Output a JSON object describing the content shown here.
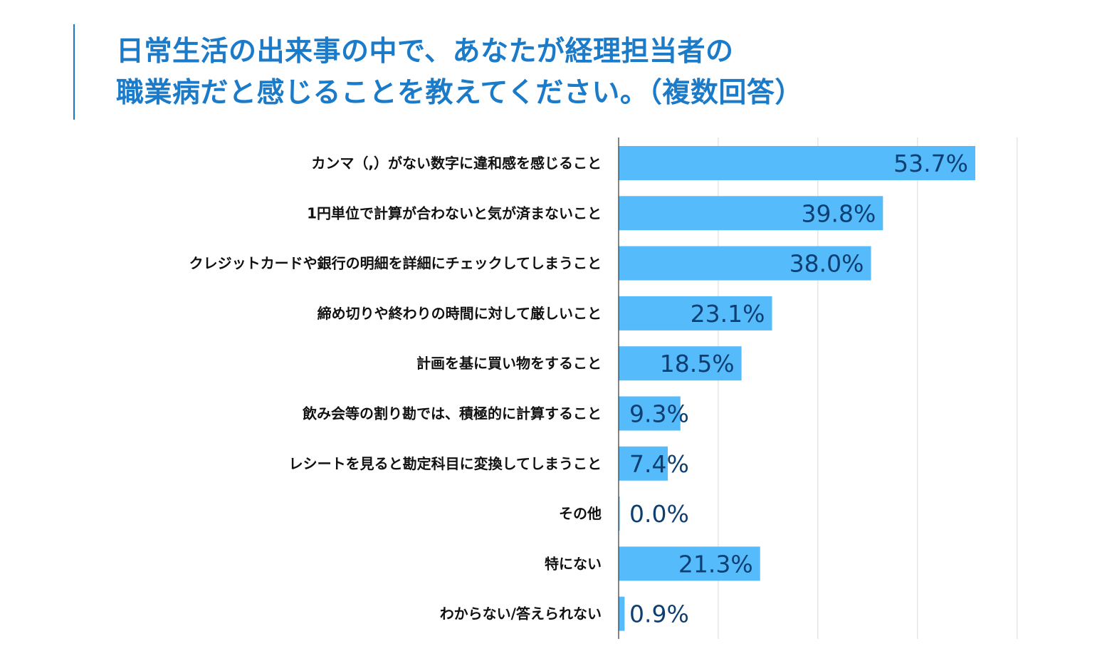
{
  "title_lines": [
    "日常生活の出来事の中で、あなたが経理担当者の",
    "職業病だと感じることを教えてください。（複数回答）"
  ],
  "colors": {
    "title": "#1b7bc9",
    "accent_line": "#1b7bc9",
    "bar": "#56bbfb",
    "value_label": "#0d3f73",
    "category_label": "#111111",
    "grid": "#d9d9d9",
    "axis": "#333333"
  },
  "chart_data": {
    "type": "bar",
    "orientation": "horizontal",
    "title": "日常生活の出来事の中で、あなたが経理担当者の職業病だと感じることを教えてください。（複数回答）",
    "categories": [
      "カンマ（,）がない数字に違和感を感じること",
      "1円単位で計算が合わないと気が済まないこと",
      "クレジットカードや銀行の明細を詳細にチェックしてしまうこと",
      "締め切りや終わりの時間に対して厳しいこと",
      "計画を基に買い物をすること",
      "飲み会等の割り勘では、積極的に計算すること",
      "レシートを見ると勘定科目に変換してしまうこと",
      "その他",
      "特にない",
      "わからない/答えられない"
    ],
    "values": [
      53.7,
      39.8,
      38.0,
      23.1,
      18.5,
      9.3,
      7.4,
      0.0,
      21.3,
      0.9
    ],
    "value_labels": [
      "53.7%",
      "39.8%",
      "38.0%",
      "23.1%",
      "18.5%",
      "9.3%",
      "7.4%",
      "0.0%",
      "21.3%",
      "0.9%"
    ],
    "unit": "%",
    "xlim": [
      0,
      60
    ],
    "grid_step": 15,
    "grid": true,
    "legend": "none",
    "xlabel": "",
    "ylabel": ""
  }
}
